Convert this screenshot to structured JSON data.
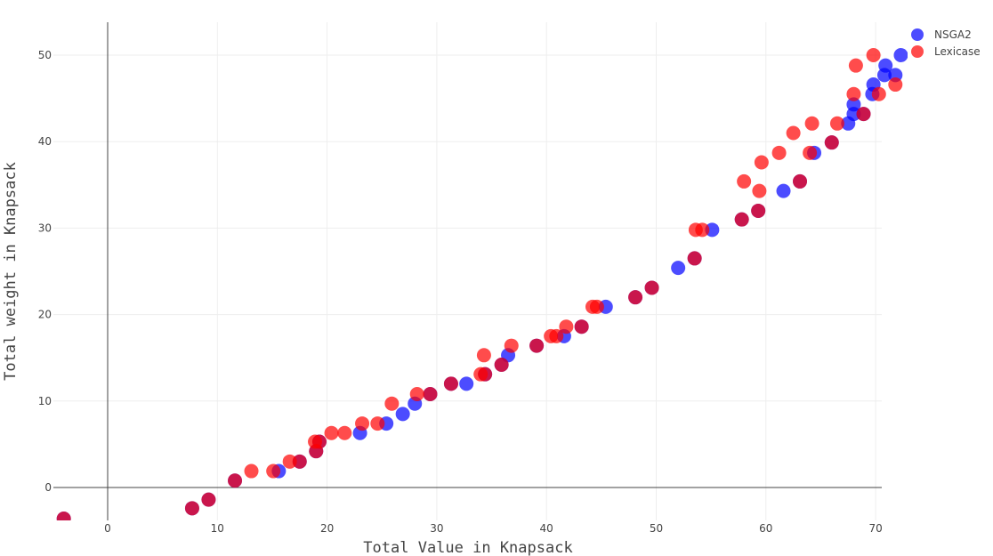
{
  "chart_data": {
    "type": "scatter",
    "title": "",
    "xlabel": "Total Value in Knapsack",
    "ylabel": "Total weight in Knapsack",
    "xlim": [
      -5,
      71
    ],
    "ylim": [
      -4,
      54
    ],
    "x_ticks": [
      0,
      10,
      20,
      30,
      40,
      50,
      60,
      70
    ],
    "y_ticks": [
      0,
      10,
      20,
      30,
      40,
      50
    ],
    "grid": true,
    "legend_position": "top-right",
    "series": [
      {
        "name": "NSGA2",
        "color": "#0000ff",
        "opacity": 0.7,
        "points": [
          [
            -4,
            -3.6
          ],
          [
            7.7,
            -2.4
          ],
          [
            9.2,
            -1.4
          ],
          [
            11.6,
            0.8
          ],
          [
            15.6,
            1.9
          ],
          [
            17.5,
            3.0
          ],
          [
            19.0,
            4.2
          ],
          [
            19.3,
            5.3
          ],
          [
            23.0,
            6.3
          ],
          [
            25.4,
            7.4
          ],
          [
            26.9,
            8.5
          ],
          [
            28.0,
            9.7
          ],
          [
            29.4,
            10.8
          ],
          [
            31.3,
            12.0
          ],
          [
            32.7,
            12.0
          ],
          [
            34.4,
            13.1
          ],
          [
            35.9,
            14.2
          ],
          [
            36.5,
            15.3
          ],
          [
            39.1,
            16.4
          ],
          [
            41.6,
            17.5
          ],
          [
            43.2,
            18.6
          ],
          [
            45.4,
            20.9
          ],
          [
            48.1,
            22.0
          ],
          [
            49.6,
            23.1
          ],
          [
            52.0,
            25.4
          ],
          [
            53.5,
            26.5
          ],
          [
            55.1,
            29.8
          ],
          [
            57.8,
            31.0
          ],
          [
            59.3,
            32.0
          ],
          [
            61.6,
            34.3
          ],
          [
            63.1,
            35.4
          ],
          [
            64.4,
            38.7
          ],
          [
            66.0,
            39.9
          ],
          [
            67.5,
            42.1
          ],
          [
            68.0,
            43.2
          ],
          [
            68.9,
            43.2
          ],
          [
            68.0,
            44.3
          ],
          [
            69.7,
            45.5
          ],
          [
            69.8,
            46.6
          ],
          [
            70.8,
            47.7
          ],
          [
            71.8,
            47.7
          ],
          [
            70.9,
            48.8
          ],
          [
            72.3,
            50.0
          ]
        ]
      },
      {
        "name": "Lexicase",
        "color": "#ff0000",
        "opacity": 0.7,
        "points": [
          [
            -4,
            -3.6
          ],
          [
            7.7,
            -2.4
          ],
          [
            9.2,
            -1.4
          ],
          [
            11.6,
            0.8
          ],
          [
            13.1,
            1.9
          ],
          [
            15.1,
            1.9
          ],
          [
            16.6,
            3.0
          ],
          [
            17.5,
            3.0
          ],
          [
            18.9,
            5.3
          ],
          [
            19.0,
            4.2
          ],
          [
            19.3,
            5.3
          ],
          [
            20.4,
            6.3
          ],
          [
            21.6,
            6.3
          ],
          [
            23.2,
            7.4
          ],
          [
            24.6,
            7.4
          ],
          [
            25.9,
            9.7
          ],
          [
            28.2,
            10.8
          ],
          [
            29.4,
            10.8
          ],
          [
            31.3,
            12.0
          ],
          [
            34.0,
            13.1
          ],
          [
            34.3,
            15.3
          ],
          [
            34.4,
            13.1
          ],
          [
            35.9,
            14.2
          ],
          [
            36.8,
            16.4
          ],
          [
            39.1,
            16.4
          ],
          [
            40.4,
            17.5
          ],
          [
            40.9,
            17.5
          ],
          [
            41.8,
            18.6
          ],
          [
            43.2,
            18.6
          ],
          [
            44.2,
            20.9
          ],
          [
            44.6,
            20.9
          ],
          [
            48.1,
            22.0
          ],
          [
            49.6,
            23.1
          ],
          [
            53.5,
            26.5
          ],
          [
            53.6,
            29.8
          ],
          [
            54.2,
            29.8
          ],
          [
            57.8,
            31.0
          ],
          [
            58.0,
            35.4
          ],
          [
            59.3,
            32.0
          ],
          [
            59.4,
            34.3
          ],
          [
            59.6,
            37.6
          ],
          [
            61.2,
            38.7
          ],
          [
            62.5,
            41.0
          ],
          [
            63.1,
            35.4
          ],
          [
            64.0,
            38.7
          ],
          [
            64.2,
            42.1
          ],
          [
            66.0,
            39.9
          ],
          [
            66.5,
            42.1
          ],
          [
            68.0,
            45.5
          ],
          [
            68.2,
            48.8
          ],
          [
            68.9,
            43.2
          ],
          [
            69.8,
            50.0
          ],
          [
            70.3,
            45.5
          ],
          [
            71.8,
            46.6
          ]
        ]
      }
    ]
  }
}
